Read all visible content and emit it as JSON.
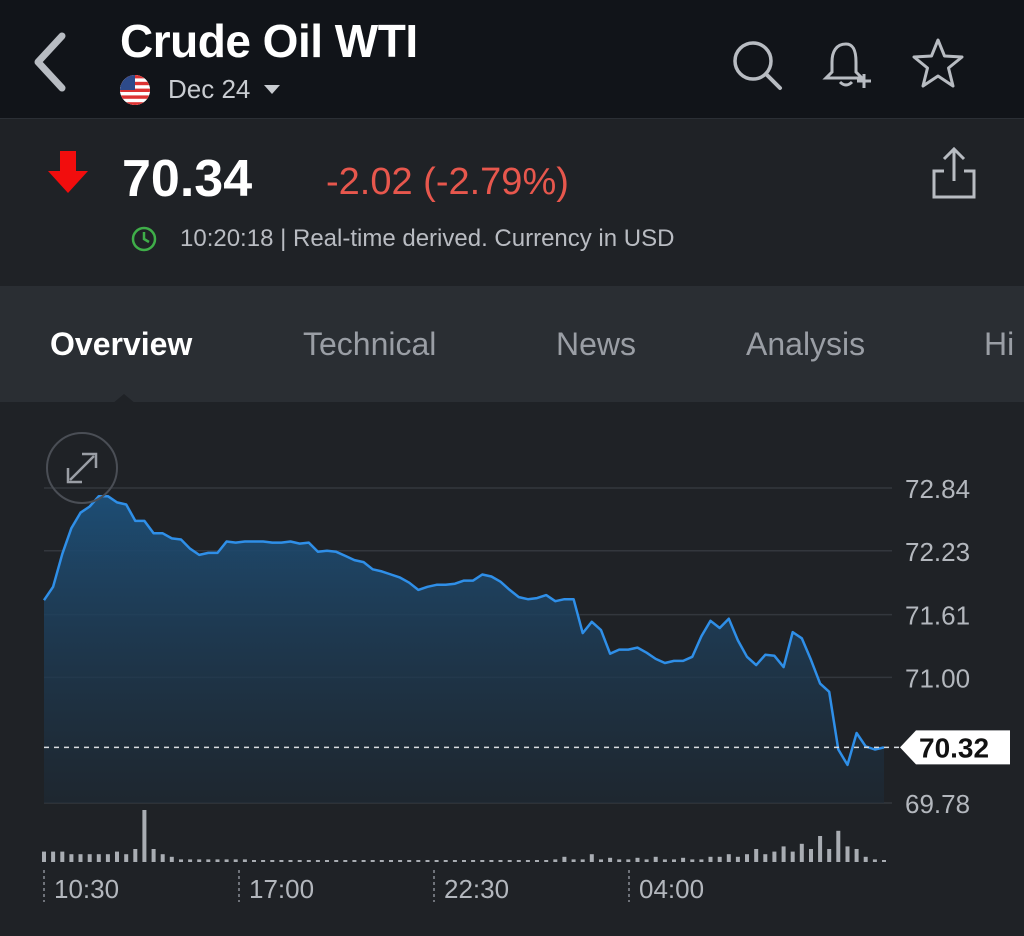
{
  "header": {
    "title": "Crude Oil WTI",
    "contract": "Dec 24",
    "icons": [
      "back-icon",
      "search-icon",
      "bell-plus-icon",
      "star-icon"
    ]
  },
  "quote": {
    "price": "70.34",
    "change": "-2.02 (-2.79%)",
    "time_info": "10:20:18 | Real-time derived. Currency in USD",
    "colors": {
      "down": "#e7574d",
      "arrow": "#f20d0d",
      "clock": "#3fae49"
    }
  },
  "tabs": [
    {
      "label": "Overview",
      "active": true
    },
    {
      "label": "Technical",
      "active": false
    },
    {
      "label": "News",
      "active": false
    },
    {
      "label": "Analysis",
      "active": false
    },
    {
      "label": "Hi",
      "active": false
    }
  ],
  "chart_data": {
    "type": "area",
    "current_value_label": "70.32",
    "y_tick_labels": [
      "72.84",
      "72.23",
      "71.61",
      "71.00",
      "69.78"
    ],
    "ylim": [
      69.78,
      72.84
    ],
    "x_tick_labels": [
      "10:30",
      "17:00",
      "22:30",
      "04:00"
    ],
    "line_color": "#2f8fe8",
    "values": [
      71.75,
      71.88,
      72.2,
      72.45,
      72.6,
      72.66,
      72.76,
      72.76,
      72.7,
      72.68,
      72.52,
      72.52,
      72.4,
      72.4,
      72.35,
      72.34,
      72.25,
      72.19,
      72.21,
      72.21,
      72.32,
      72.31,
      72.32,
      72.32,
      72.32,
      72.31,
      72.31,
      72.32,
      72.3,
      72.31,
      72.22,
      72.23,
      72.22,
      72.18,
      72.14,
      72.12,
      72.05,
      72.03,
      72.0,
      71.97,
      71.92,
      71.85,
      71.88,
      71.9,
      71.9,
      71.91,
      71.94,
      71.94,
      72.0,
      71.98,
      71.93,
      71.85,
      71.78,
      71.76,
      71.77,
      71.8,
      71.74,
      71.76,
      71.76,
      71.43,
      71.54,
      71.46,
      71.23,
      71.27,
      71.27,
      71.29,
      71.24,
      71.18,
      71.14,
      71.16,
      71.16,
      71.2,
      71.4,
      71.55,
      71.48,
      71.57,
      71.36,
      71.2,
      71.12,
      71.22,
      71.21,
      71.1,
      71.44,
      71.38,
      71.17,
      70.94,
      70.86,
      70.3,
      70.15,
      70.46,
      70.33,
      70.3,
      70.32
    ],
    "volume": [
      0.2,
      0.2,
      0.2,
      0.15,
      0.15,
      0.15,
      0.15,
      0.15,
      0.2,
      0.15,
      0.25,
      1.0,
      0.25,
      0.15,
      0.1,
      0.05,
      0.05,
      0.05,
      0.05,
      0.05,
      0.05,
      0.05,
      0.05,
      0.02,
      0.02,
      0.02,
      0.02,
      0.02,
      0.02,
      0.02,
      0.02,
      0.02,
      0.02,
      0.02,
      0.02,
      0.02,
      0.02,
      0.02,
      0.02,
      0.02,
      0.02,
      0.02,
      0.02,
      0.02,
      0.02,
      0.02,
      0.02,
      0.02,
      0.02,
      0.02,
      0.02,
      0.02,
      0.02,
      0.02,
      0.02,
      0.02,
      0.05,
      0.1,
      0.05,
      0.05,
      0.15,
      0.05,
      0.08,
      0.05,
      0.05,
      0.08,
      0.05,
      0.1,
      0.05,
      0.05,
      0.08,
      0.05,
      0.05,
      0.1,
      0.1,
      0.15,
      0.1,
      0.15,
      0.25,
      0.15,
      0.2,
      0.3,
      0.2,
      0.35,
      0.25,
      0.5,
      0.25,
      0.6,
      0.3,
      0.25,
      0.1,
      0.05,
      0.02
    ]
  }
}
